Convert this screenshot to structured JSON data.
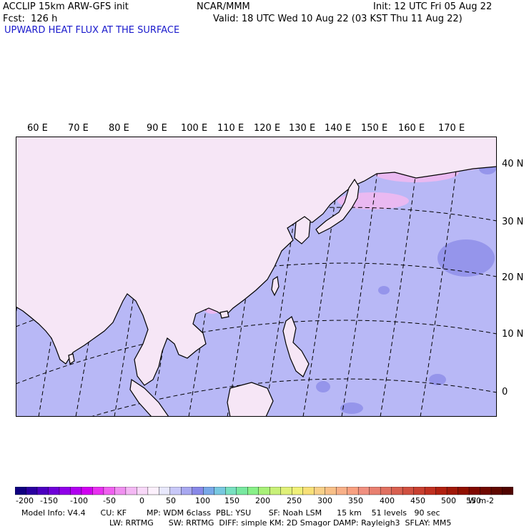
{
  "header": {
    "model": "ACCLIP 15km ARW-GFS init",
    "org": "NCAR/MMM",
    "init": "Init: 12 UTC Fri 05 Aug 22",
    "fcst": "Fcst:  126 h",
    "valid": "Valid: 18 UTC Wed 10 Aug 22 (03 KST Thu 11 Aug 22)",
    "field": "UPWARD HEAT FLUX AT THE SURFACE"
  },
  "map": {
    "lon_labels": [
      "60 E",
      "70 E",
      "80 E",
      "90 E",
      "100 E",
      "110 E",
      "120 E",
      "130 E",
      "140 E",
      "150 E",
      "160 E",
      "170 E"
    ],
    "lat_labels": [
      "40 N",
      "30 N",
      "20 N",
      "10 N",
      "0"
    ],
    "colors": {
      "ocean": "#b8b8f6",
      "land_pale": "#f6e6f6",
      "pink": "#f2b8f0",
      "blue_patch": "#8c8ce8",
      "coast": "#000000",
      "grid": "#000000"
    }
  },
  "colorbar": {
    "ticks": [
      "-200",
      "-150",
      "-100",
      "-50",
      "0",
      "50",
      "100",
      "150",
      "200",
      "250",
      "300",
      "350",
      "400",
      "450",
      "500",
      "550"
    ],
    "unit": "W m-2",
    "colors": [
      "#100080",
      "#2a00a0",
      "#4c00c0",
      "#6e00d8",
      "#9000e8",
      "#b000f0",
      "#d000f0",
      "#e830f0",
      "#f060f0",
      "#f090f0",
      "#f4b8f4",
      "#f8d8f8",
      "#fcf0fc",
      "#e8e8fc",
      "#c8c8f8",
      "#a8a8f0",
      "#8888e8",
      "#78a8e8",
      "#78c8e0",
      "#78e0c0",
      "#78e8a0",
      "#88f088",
      "#a8f078",
      "#c8f078",
      "#e0f078",
      "#f0f078",
      "#f8e078",
      "#f8d088",
      "#f8c088",
      "#f8b088",
      "#f8a080",
      "#f09080",
      "#e88070",
      "#e07060",
      "#d86050",
      "#d05040",
      "#c84030",
      "#c03020",
      "#b02010",
      "#a01808",
      "#901000",
      "#800800",
      "#700800",
      "#600800",
      "#500400"
    ]
  },
  "info": {
    "line1": "Model Info: V4.4      CU: KF        MP: WDM 6class  PBL: YSU       SF: Noah LSM      15 km    51 levels   90 sec",
    "line2": "LW: RRTMG      SW: RRTMG  DIFF: simple KM: 2D Smagor DAMP: Rayleigh3  SFLAY: MM5"
  }
}
